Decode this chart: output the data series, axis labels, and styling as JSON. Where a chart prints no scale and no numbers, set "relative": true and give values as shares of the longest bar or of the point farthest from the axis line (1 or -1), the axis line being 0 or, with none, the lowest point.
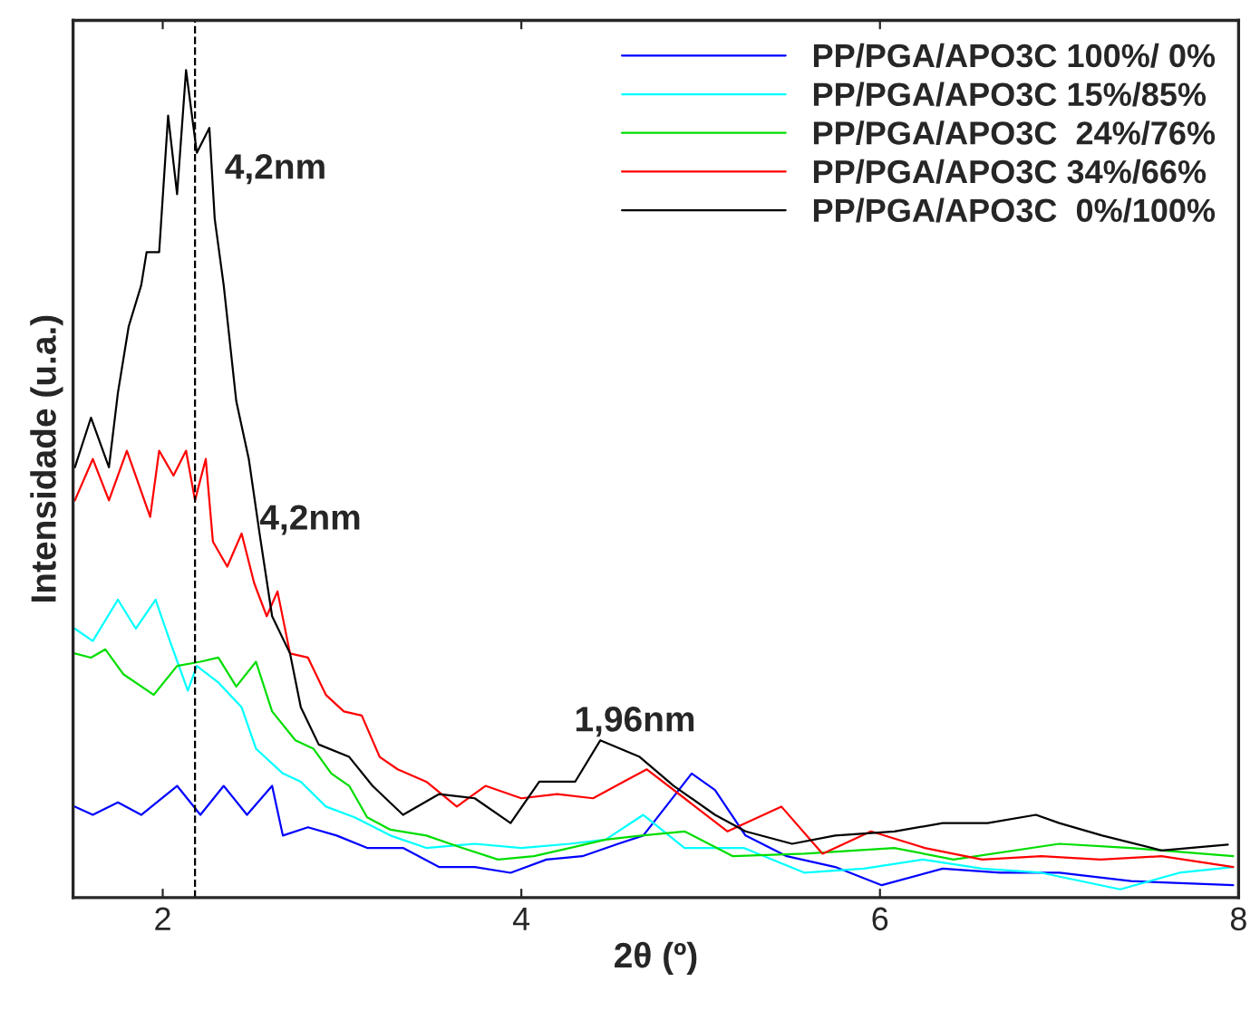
{
  "chart_data": {
    "type": "line",
    "xlabel": "2θ (º)",
    "ylabel": "Intensidade (u.a.)",
    "relative": true,
    "xlim": [
      1.5,
      8
    ],
    "xticks": [
      2,
      4,
      6,
      8
    ],
    "legend": "top right",
    "grid": false,
    "ref_lines": [
      {
        "axis": "x",
        "value": 2.18,
        "color": "#000000",
        "line_style": "dashed"
      }
    ],
    "annotations": [
      "4,2nm",
      "4,2nm",
      "1,96nm"
    ],
    "series": [
      {
        "name": "PP/PGA/APO3C 100%/ 0%",
        "color": "#0000ff",
        "x": [
          1.51,
          1.61,
          1.75,
          1.88,
          2.08,
          2.21,
          2.34,
          2.47,
          2.61,
          2.67,
          2.81,
          2.97,
          3.14,
          3.34,
          3.54,
          3.74,
          3.94,
          4.14,
          4.34,
          4.54,
          4.68,
          4.95,
          5.08,
          5.25,
          5.48,
          5.75,
          6.01,
          6.35,
          6.67,
          7.0,
          7.4,
          7.97
        ],
        "values": [
          0.11,
          0.1,
          0.115,
          0.1,
          0.135,
          0.1,
          0.135,
          0.1,
          0.135,
          0.075,
          0.085,
          0.075,
          0.06,
          0.06,
          0.037,
          0.037,
          0.03,
          0.046,
          0.05,
          0.065,
          0.075,
          0.15,
          0.13,
          0.075,
          0.05,
          0.037,
          0.015,
          0.035,
          0.03,
          0.03,
          0.02,
          0.015
        ]
      },
      {
        "name": "PP/PGA/APO3C 15%/85%",
        "color": "#00ffff",
        "x": [
          1.51,
          1.61,
          1.75,
          1.85,
          1.96,
          2.04,
          2.14,
          2.19,
          2.31,
          2.44,
          2.52,
          2.67,
          2.77,
          2.91,
          3.07,
          3.27,
          3.47,
          3.74,
          4.0,
          4.27,
          4.47,
          4.68,
          4.91,
          5.24,
          5.58,
          5.91,
          6.24,
          6.57,
          6.9,
          7.34,
          7.67,
          7.97
        ],
        "values": [
          0.325,
          0.31,
          0.36,
          0.325,
          0.36,
          0.31,
          0.25,
          0.28,
          0.26,
          0.23,
          0.18,
          0.15,
          0.14,
          0.11,
          0.097,
          0.075,
          0.06,
          0.065,
          0.06,
          0.065,
          0.07,
          0.1,
          0.06,
          0.06,
          0.03,
          0.035,
          0.046,
          0.035,
          0.03,
          0.01,
          0.03,
          0.037
        ]
      },
      {
        "name": "PP/PGA/APO3C  24%/76%",
        "color": "#00dd00",
        "x": [
          1.51,
          1.6,
          1.68,
          1.78,
          1.95,
          2.08,
          2.21,
          2.31,
          2.41,
          2.52,
          2.61,
          2.74,
          2.84,
          2.94,
          3.04,
          3.14,
          3.27,
          3.47,
          3.67,
          3.87,
          4.07,
          4.27,
          4.47,
          4.67,
          4.91,
          5.18,
          5.58,
          6.08,
          6.41,
          7.0,
          7.4,
          7.97
        ],
        "values": [
          0.295,
          0.29,
          0.3,
          0.27,
          0.245,
          0.28,
          0.285,
          0.29,
          0.255,
          0.285,
          0.225,
          0.19,
          0.18,
          0.15,
          0.135,
          0.097,
          0.082,
          0.075,
          0.06,
          0.046,
          0.05,
          0.06,
          0.07,
          0.075,
          0.08,
          0.05,
          0.053,
          0.06,
          0.046,
          0.065,
          0.06,
          0.05
        ]
      },
      {
        "name": "PP/PGA/APO3C 34%/66%",
        "color": "#ff0000",
        "x": [
          1.51,
          1.61,
          1.7,
          1.8,
          1.93,
          1.98,
          2.06,
          2.13,
          2.18,
          2.24,
          2.28,
          2.36,
          2.44,
          2.51,
          2.58,
          2.64,
          2.71,
          2.81,
          2.91,
          3.01,
          3.11,
          3.21,
          3.31,
          3.47,
          3.64,
          3.8,
          4.0,
          4.2,
          4.4,
          4.57,
          4.7,
          4.91,
          5.15,
          5.45,
          5.68,
          5.95,
          6.25,
          6.57,
          6.9,
          7.23,
          7.57,
          7.97
        ],
        "values": [
          0.48,
          0.53,
          0.48,
          0.54,
          0.46,
          0.54,
          0.51,
          0.54,
          0.48,
          0.53,
          0.43,
          0.4,
          0.44,
          0.38,
          0.34,
          0.37,
          0.295,
          0.29,
          0.245,
          0.225,
          0.22,
          0.17,
          0.155,
          0.14,
          0.11,
          0.135,
          0.12,
          0.125,
          0.12,
          0.14,
          0.155,
          0.12,
          0.08,
          0.11,
          0.053,
          0.08,
          0.06,
          0.046,
          0.05,
          0.046,
          0.05,
          0.037
        ]
      },
      {
        "name": "PP/PGA/APO3C  0%/100%",
        "color": "#000000",
        "x": [
          1.51,
          1.6,
          1.7,
          1.75,
          1.81,
          1.88,
          1.91,
          1.98,
          2.03,
          2.08,
          2.13,
          2.19,
          2.26,
          2.29,
          2.34,
          2.41,
          2.48,
          2.54,
          2.61,
          2.71,
          2.77,
          2.87,
          3.04,
          3.17,
          3.34,
          3.54,
          3.74,
          3.94,
          4.1,
          4.3,
          4.44,
          4.66,
          4.85,
          5.08,
          5.25,
          5.51,
          5.75,
          6.08,
          6.35,
          6.6,
          6.87,
          7.0,
          7.24,
          7.57,
          7.94
        ],
        "values": [
          0.52,
          0.58,
          0.52,
          0.61,
          0.69,
          0.74,
          0.78,
          0.78,
          0.945,
          0.85,
          1.0,
          0.9,
          0.93,
          0.82,
          0.74,
          0.6,
          0.53,
          0.44,
          0.34,
          0.295,
          0.23,
          0.185,
          0.17,
          0.135,
          0.1,
          0.125,
          0.12,
          0.09,
          0.14,
          0.14,
          0.19,
          0.17,
          0.135,
          0.1,
          0.08,
          0.065,
          0.075,
          0.08,
          0.09,
          0.09,
          0.1,
          0.09,
          0.075,
          0.057,
          0.064
        ]
      }
    ]
  }
}
